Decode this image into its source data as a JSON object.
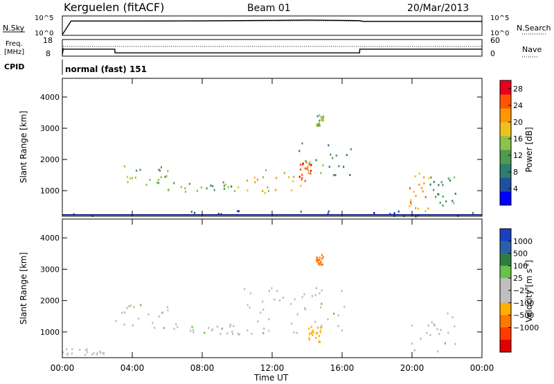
{
  "header": {
    "station": "Kerguelen (fitACF)",
    "beam": "Beam 01",
    "date": "20/Mar/2013"
  },
  "noise_panel": {
    "left_label": "N.Sky",
    "right_label": "N.Search",
    "left_ticks": [
      "10^5",
      "10^0"
    ],
    "right_ticks": [
      "10^5",
      "10^0"
    ]
  },
  "freq_panel": {
    "left_label_1": "Freq.",
    "left_label_2": "[MHz]",
    "right_label": "Nave",
    "left_ticks": [
      "18",
      "8"
    ],
    "right_ticks": [
      "60",
      "0"
    ]
  },
  "cpid": {
    "label": "CPID",
    "value": "normal (fast) 151"
  },
  "colors": {
    "power_scale": [
      "#0000ff",
      "#1f4fa0",
      "#2e7d6e",
      "#4f9a4f",
      "#8bc34a",
      "#f0c020",
      "#ff9800",
      "#ff5500",
      "#e8001e"
    ],
    "velocity_scale": [
      "#1a3fbf",
      "#2b5fa8",
      "#2e7d40",
      "#66c24a",
      "#bfbfbf",
      "#bfbfbf",
      "#ffb000",
      "#ff7a00",
      "#ff3c00",
      "#e00000"
    ],
    "ground_scatter": "#bdbdb5"
  },
  "chart_data": [
    {
      "type": "line",
      "panel": "noise",
      "ylim_log10": [
        0,
        5
      ],
      "x_hours": [
        0,
        0.5,
        1,
        2,
        4,
        8,
        12,
        14,
        16,
        17,
        17.2,
        20,
        24
      ],
      "series": [
        {
          "name": "N.Sky",
          "values_log10": [
            0,
            4.1,
            4.1,
            4.1,
            4.1,
            4.15,
            4.3,
            4.4,
            4.3,
            4.2,
            4.0,
            4.0,
            4.0
          ]
        },
        {
          "name": "N.Search",
          "values_log10": [
            0,
            4.0,
            4.0,
            4.0,
            4.0,
            4.05,
            4.1,
            4.15,
            4.1,
            4.05,
            3.9,
            3.9,
            3.9
          ]
        }
      ]
    },
    {
      "type": "line",
      "panel": "frequency",
      "ylim": [
        8,
        18
      ],
      "x_hours": [
        0,
        0.05,
        3,
        3.01,
        17,
        17.01,
        24
      ],
      "series": [
        {
          "name": "Freq.",
          "values": [
            8,
            12.5,
            12.5,
            9.5,
            9.5,
            12.5,
            12.5
          ]
        },
        {
          "name": "Nave",
          "values_right_axis": [
            0,
            40,
            40,
            40,
            40,
            40,
            40
          ],
          "ylim_right": [
            0,
            60
          ]
        }
      ]
    },
    {
      "type": "heatmap",
      "panel": "power",
      "ylabel": "Slant Range [km]",
      "ylim": [
        180,
        4600
      ],
      "yticks": [
        1000,
        2000,
        3000,
        4000
      ],
      "xlim": [
        0,
        24
      ],
      "colorbar": {
        "label": "Power [dB]",
        "ticks": [
          4,
          8,
          12,
          16,
          20,
          24,
          28
        ],
        "range": [
          0,
          30
        ]
      },
      "regions": [
        {
          "hours": [
            3.0,
            6.0
          ],
          "range_km": [
            1150,
            1900
          ],
          "power_db": 14
        },
        {
          "hours": [
            6.0,
            10.0
          ],
          "range_km": [
            950,
            1300
          ],
          "power_db": 13
        },
        {
          "hours": [
            10.0,
            14.5
          ],
          "range_km": [
            950,
            1700
          ],
          "power_db": 18
        },
        {
          "hours": [
            12.5,
            16.5
          ],
          "range_km": [
            1500,
            2600
          ],
          "power_db": 10
        },
        {
          "hours": [
            13.5,
            14.2
          ],
          "range_km": [
            1300,
            2000
          ],
          "power_db": 26
        },
        {
          "hours": [
            14.5,
            14.9
          ],
          "range_km": [
            3100,
            3500
          ],
          "power_db": 14
        },
        {
          "hours": [
            19.8,
            21.0
          ],
          "range_km": [
            350,
            1700
          ],
          "power_db": 22
        },
        {
          "hours": [
            21.0,
            22.5
          ],
          "range_km": [
            400,
            1500
          ],
          "power_db": 10
        },
        {
          "hours": [
            0,
            24
          ],
          "range_km": [
            200,
            400
          ],
          "power_db": 5
        }
      ]
    },
    {
      "type": "heatmap",
      "panel": "velocity",
      "ylabel": "Slant Range [km]",
      "ylim": [
        180,
        4600
      ],
      "yticks": [
        1000,
        2000,
        3000,
        4000
      ],
      "xlim": [
        0,
        24
      ],
      "xticks": [
        "00:00",
        "04:00",
        "08:00",
        "12:00",
        "16:00",
        "20:00",
        "00:00"
      ],
      "xlabel": "Time UT",
      "colorbar": {
        "label": "Velocity [m s",
        "label_sup": "-1",
        "ticks": [
          "1000",
          "500",
          "100",
          "25",
          "−25",
          "−100",
          "−500",
          "−1000"
        ]
      },
      "regions": [
        {
          "hours": [
            3.0,
            6.0
          ],
          "range_km": [
            1150,
            1900
          ],
          "velocity": 0
        },
        {
          "hours": [
            6.0,
            10.0
          ],
          "range_km": [
            950,
            1300
          ],
          "velocity": 0
        },
        {
          "hours": [
            10.0,
            16.5
          ],
          "range_km": [
            950,
            2600
          ],
          "velocity": 0
        },
        {
          "hours": [
            14.5,
            14.9
          ],
          "range_km": [
            3100,
            3500
          ],
          "velocity": -800
        },
        {
          "hours": [
            14.0,
            14.8
          ],
          "range_km": [
            700,
            1200
          ],
          "velocity": -300
        },
        {
          "hours": [
            19.8,
            22.5
          ],
          "range_km": [
            400,
            1700
          ],
          "velocity": 0
        },
        {
          "hours": [
            0,
            2.5
          ],
          "range_km": [
            250,
            500
          ],
          "velocity": -60
        }
      ]
    }
  ]
}
